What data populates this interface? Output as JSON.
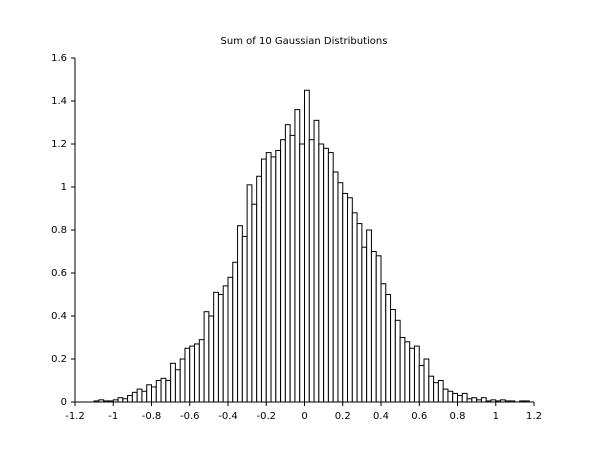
{
  "chart_data": {
    "type": "histogram",
    "title": "Sum of 10 Gaussian Distributions",
    "bins": [
      -1.1,
      -1.075,
      -1.05,
      -1.025,
      -1,
      -0.975,
      -0.95,
      -0.925,
      -0.9,
      -0.875,
      -0.85,
      -0.825,
      -0.8,
      -0.775,
      -0.75,
      -0.725,
      -0.7,
      -0.675,
      -0.65,
      -0.625,
      -0.6,
      -0.575,
      -0.55,
      -0.525,
      -0.5,
      -0.475,
      -0.45,
      -0.425,
      -0.4,
      -0.375,
      -0.35,
      -0.325,
      -0.3,
      -0.275,
      -0.25,
      -0.225,
      -0.2,
      -0.175,
      -0.15,
      -0.125,
      -0.1,
      -0.075,
      -0.05,
      -0.025,
      0,
      0.025,
      0.05,
      0.075,
      0.1,
      0.125,
      0.15,
      0.175,
      0.2,
      0.225,
      0.25,
      0.275,
      0.3,
      0.325,
      0.35,
      0.375,
      0.4,
      0.425,
      0.45,
      0.475,
      0.5,
      0.525,
      0.55,
      0.575,
      0.6,
      0.625,
      0.65,
      0.675,
      0.7,
      0.725,
      0.75,
      0.775,
      0.8,
      0.825,
      0.85,
      0.875,
      0.9,
      0.925,
      0.95,
      0.975,
      1,
      1.025,
      1.05,
      1.075,
      1.1,
      1.125,
      1.15,
      1.175
    ],
    "values": [
      0.005,
      0.01,
      0.005,
      0.005,
      0.01,
      0.02,
      0.015,
      0.03,
      0.045,
      0.06,
      0.05,
      0.08,
      0.07,
      0.1,
      0.11,
      0.1,
      0.18,
      0.15,
      0.2,
      0.25,
      0.26,
      0.27,
      0.29,
      0.42,
      0.4,
      0.51,
      0.5,
      0.54,
      0.58,
      0.65,
      0.82,
      0.77,
      1.01,
      0.92,
      1.05,
      1.13,
      1.16,
      1.14,
      1.17,
      1.22,
      1.29,
      1.24,
      1.36,
      1.2,
      1.45,
      1.22,
      1.31,
      1.2,
      1.18,
      1.16,
      1.07,
      1.02,
      0.97,
      0.95,
      0.88,
      0.83,
      0.72,
      0.8,
      0.7,
      0.68,
      0.55,
      0.5,
      0.43,
      0.38,
      0.3,
      0.28,
      0.25,
      0.26,
      0.17,
      0.2,
      0.12,
      0.09,
      0.1,
      0.06,
      0.05,
      0.04,
      0.03,
      0.04,
      0.015,
      0.02,
      0.01,
      0.02,
      0.005,
      0.01,
      0.005,
      0.01,
      0.005,
      0.005,
      0,
      0.005,
      0.005
    ],
    "color": "#ffffff",
    "edgecolor": "#000000",
    "xlim": [
      -1.2,
      1.2
    ],
    "xticks": [
      -1.2,
      -1,
      -0.8,
      -0.6,
      -0.4,
      -0.2,
      0,
      0.2,
      0.4,
      0.6,
      0.8,
      1,
      1.2
    ],
    "ylim": [
      0,
      1.6
    ],
    "yticks": [
      0,
      0.2,
      0.4,
      0.6,
      0.8,
      1,
      1.2,
      1.4,
      1.6
    ]
  }
}
